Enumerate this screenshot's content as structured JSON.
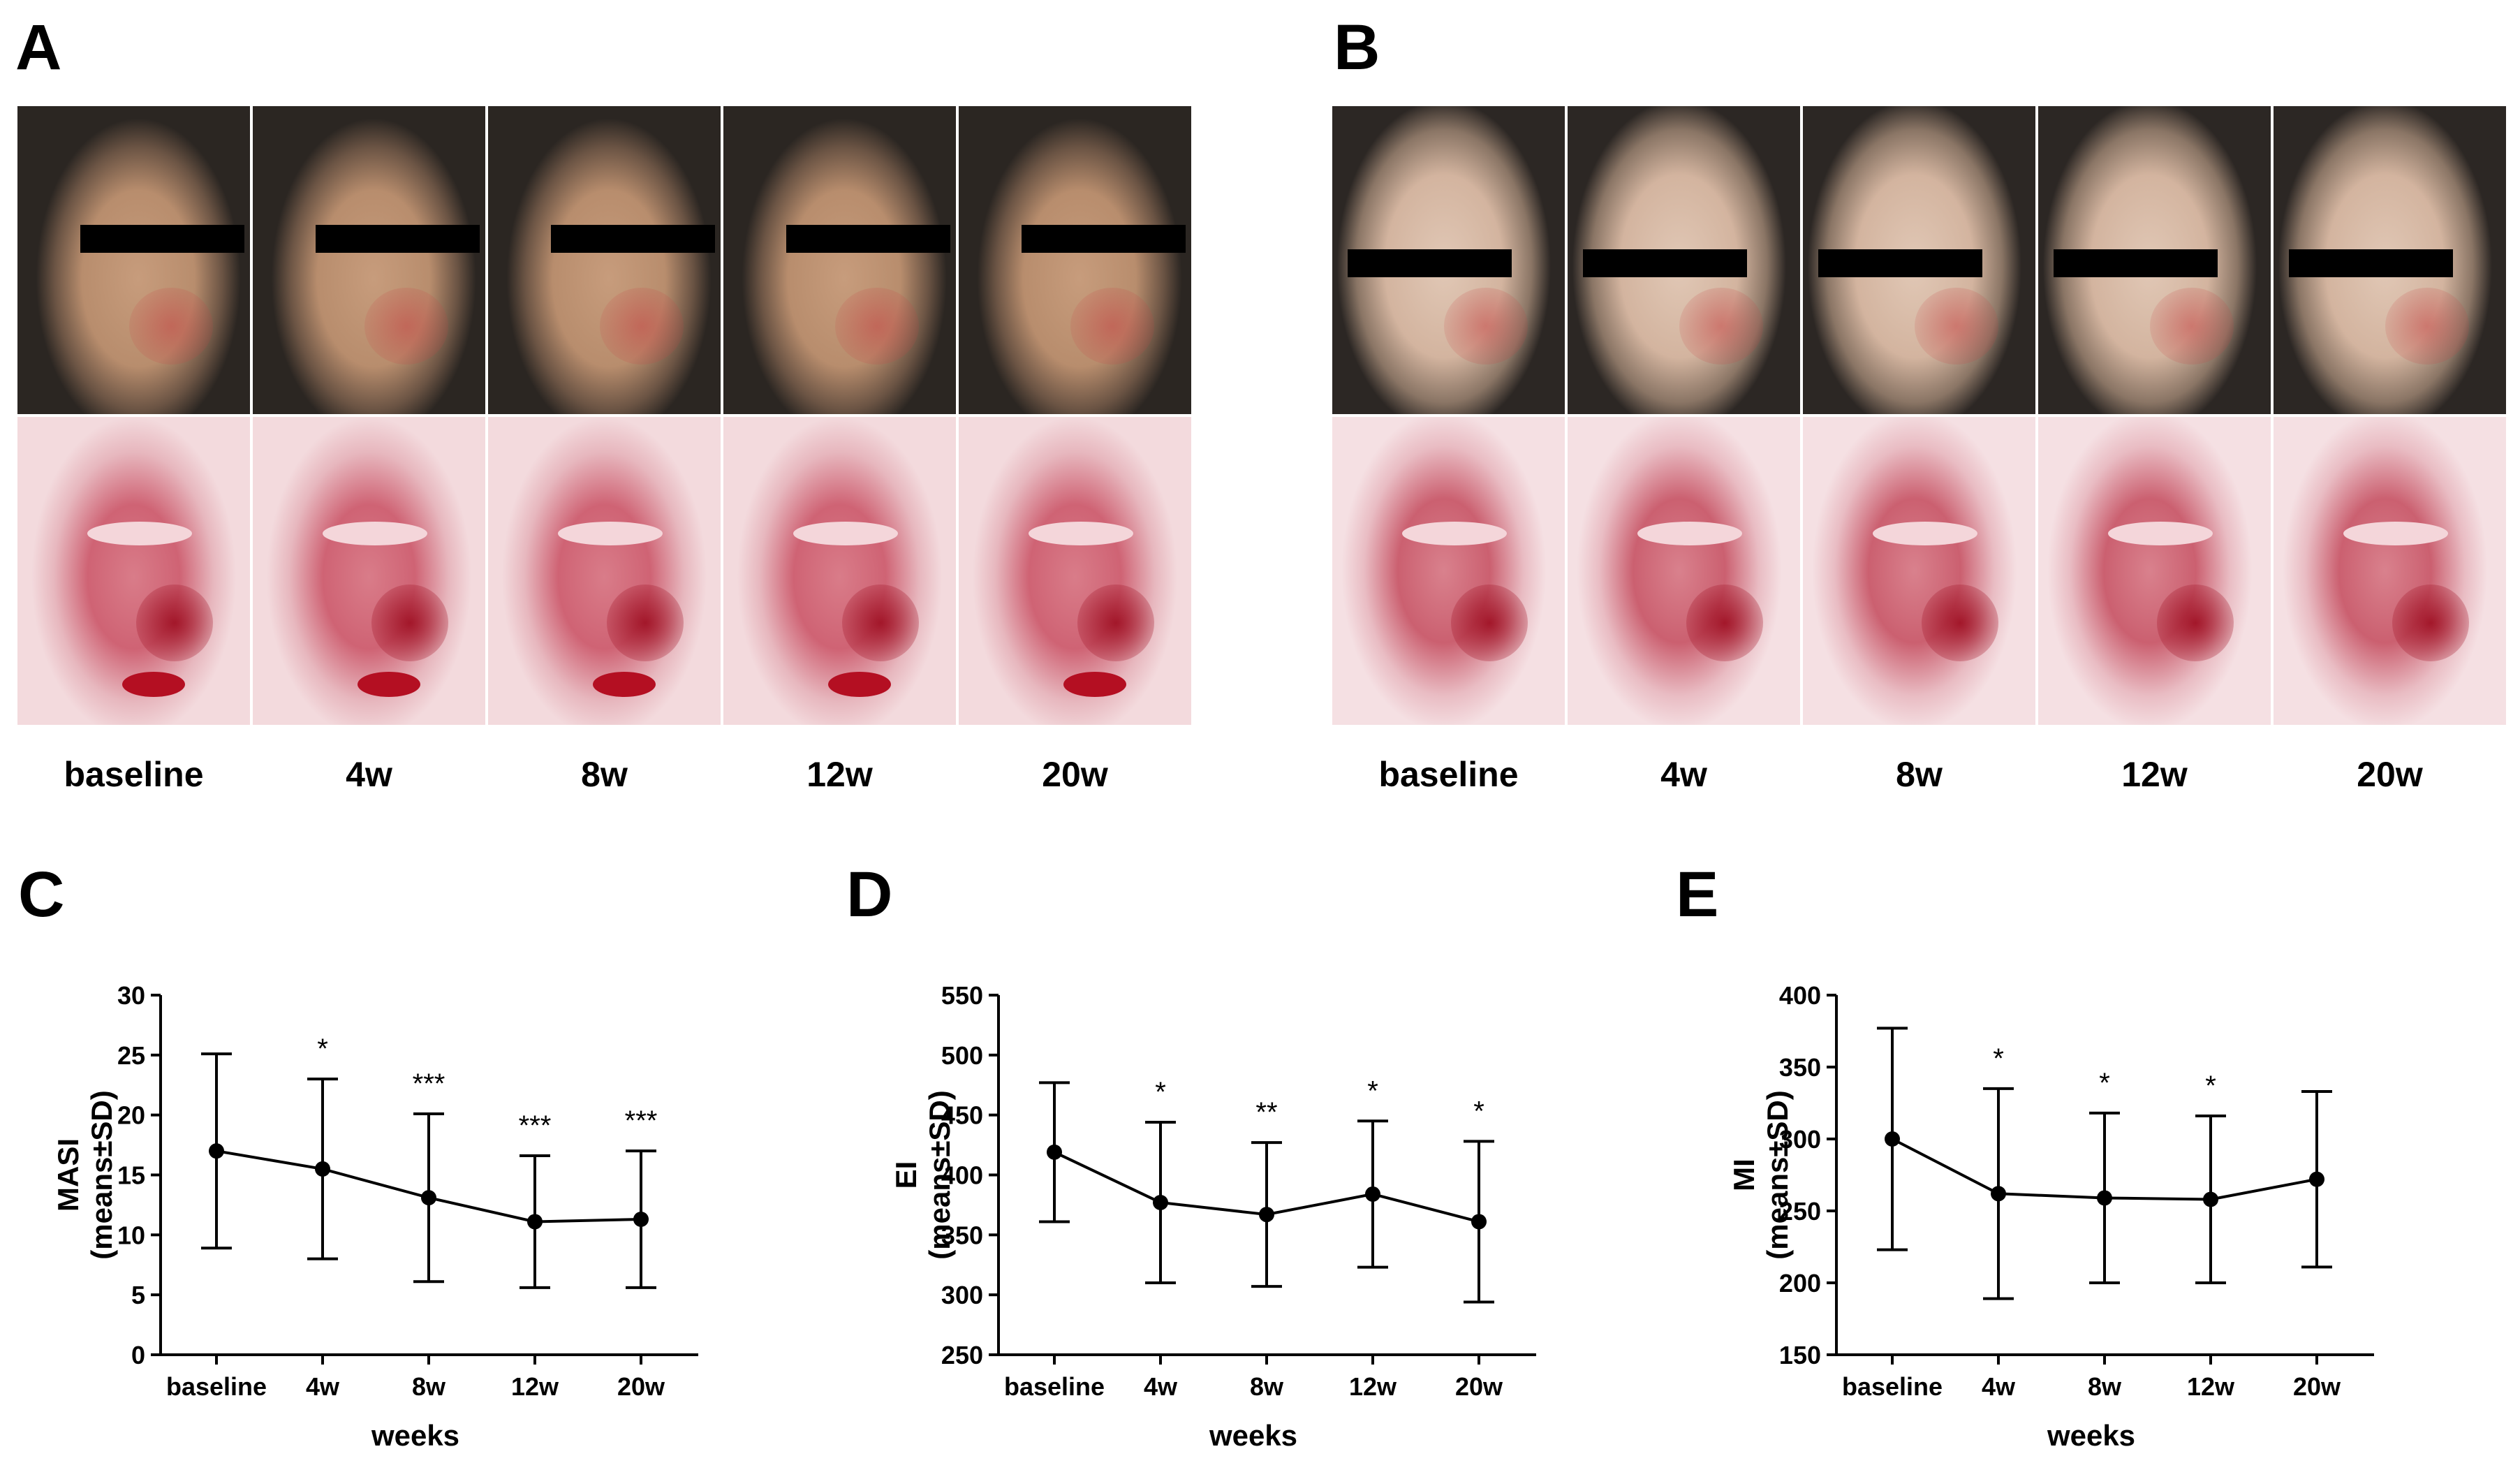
{
  "panels": {
    "A": "A",
    "B": "B",
    "C": "C",
    "D": "D",
    "E": "E"
  },
  "timepoints": [
    "baseline",
    "4w",
    "8w",
    "12w",
    "20w"
  ],
  "chart_data": [
    {
      "type": "line",
      "panel": "C",
      "categories": [
        "baseline",
        "4w",
        "8w",
        "12w",
        "20w"
      ],
      "values": [
        17.0,
        15.5,
        13.1,
        11.1,
        11.3
      ],
      "sd": [
        8.1,
        7.5,
        7.0,
        5.5,
        5.7
      ],
      "significance": [
        "",
        "*",
        "***",
        "***",
        "***"
      ],
      "xlabel": "weeks",
      "ylabel": "MASI",
      "ylabel_sub": "(means±SD)",
      "ylim": [
        0,
        30
      ],
      "yticks": [
        0,
        5,
        10,
        15,
        20,
        25,
        30
      ]
    },
    {
      "type": "line",
      "panel": "D",
      "categories": [
        "baseline",
        "4w",
        "8w",
        "12w",
        "20w"
      ],
      "values": [
        419,
        377,
        367,
        384,
        361
      ],
      "sd": [
        58,
        67,
        60,
        61,
        67
      ],
      "significance": [
        "",
        "*",
        "**",
        "*",
        "*"
      ],
      "xlabel": "weeks",
      "ylabel": "EI",
      "ylabel_sub": "(means±SD)",
      "ylim": [
        250,
        550
      ],
      "yticks": [
        250,
        300,
        350,
        400,
        450,
        500,
        550
      ]
    },
    {
      "type": "line",
      "panel": "E",
      "categories": [
        "baseline",
        "4w",
        "8w",
        "12w",
        "20w"
      ],
      "values": [
        300,
        262,
        259,
        258,
        272
      ],
      "sd": [
        77,
        73,
        59,
        58,
        61
      ],
      "significance": [
        "",
        "*",
        "*",
        "*",
        ""
      ],
      "xlabel": "weeks",
      "ylabel": "MI",
      "ylabel_sub": "(means±SD)",
      "ylim": [
        150,
        400
      ],
      "yticks": [
        150,
        200,
        250,
        300,
        350,
        400
      ]
    }
  ]
}
